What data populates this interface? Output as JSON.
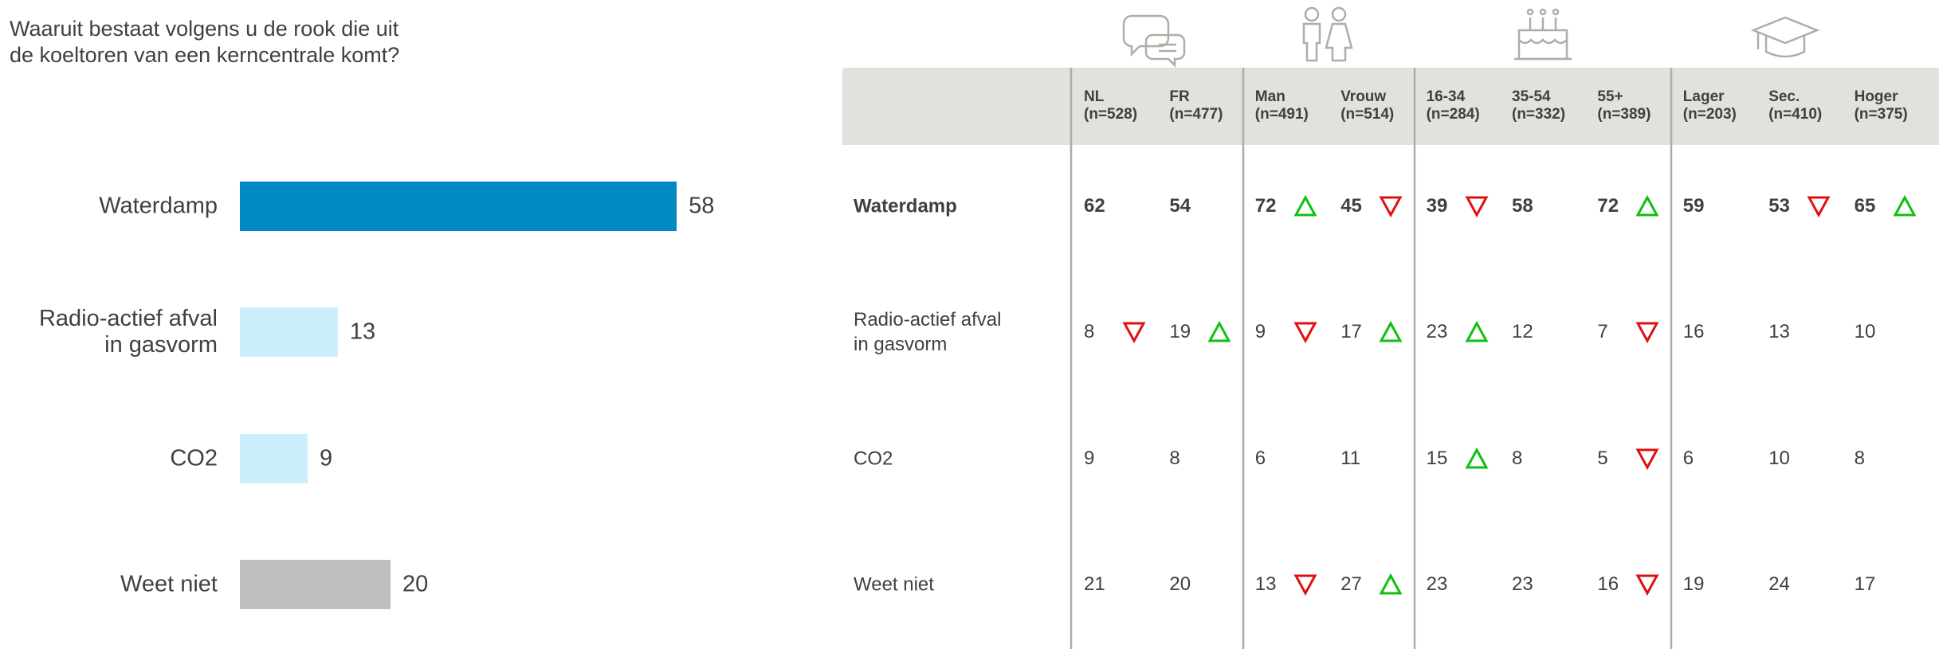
{
  "chart_data": {
    "type": "bar",
    "orientation": "horizontal",
    "title": "Waaruit bestaat volgens u de rook die uit\nde koeltoren van een kerncentrale komt?",
    "categories": [
      "Waterdamp",
      "Radio-actief afval\nin gasvorm",
      "CO2",
      "Weet niet"
    ],
    "values": [
      58,
      13,
      9,
      20
    ],
    "colors": [
      "#0089c4",
      "#cdeefc",
      "#cdeefc",
      "#bfbfbf"
    ]
  },
  "table": {
    "columns": [
      "NL\n(n=528)",
      "FR\n(n=477)",
      "Man\n(n=491)",
      "Vrouw\n(n=514)",
      "16-34\n(n=284)",
      "35-54\n(n=332)",
      "55+\n(n=389)",
      "Lager\n(n=203)",
      "Sec.\n(n=410)",
      "Hoger\n(n=375)"
    ],
    "rows": [
      {
        "label": "Waterdamp",
        "bold": true,
        "cells": [
          {
            "value": 62
          },
          {
            "value": 54
          },
          {
            "value": 72,
            "sig": "up"
          },
          {
            "value": 45,
            "sig": "down"
          },
          {
            "value": 39,
            "sig": "down"
          },
          {
            "value": 58
          },
          {
            "value": 72,
            "sig": "up"
          },
          {
            "value": 59
          },
          {
            "value": 53,
            "sig": "down"
          },
          {
            "value": 65,
            "sig": "up"
          }
        ]
      },
      {
        "label": "Radio-actief afval\nin gasvorm",
        "cells": [
          {
            "value": 8,
            "sig": "down"
          },
          {
            "value": 19,
            "sig": "up"
          },
          {
            "value": 9,
            "sig": "down"
          },
          {
            "value": 17,
            "sig": "up"
          },
          {
            "value": 23,
            "sig": "up"
          },
          {
            "value": 12
          },
          {
            "value": 7,
            "sig": "down"
          },
          {
            "value": 16
          },
          {
            "value": 13
          },
          {
            "value": 10
          }
        ]
      },
      {
        "label": "CO2",
        "cells": [
          {
            "value": 9
          },
          {
            "value": 8
          },
          {
            "value": 6
          },
          {
            "value": 11
          },
          {
            "value": 15,
            "sig": "up"
          },
          {
            "value": 8
          },
          {
            "value": 5,
            "sig": "down"
          },
          {
            "value": 6
          },
          {
            "value": 10
          },
          {
            "value": 8
          }
        ]
      },
      {
        "label": "Weet niet",
        "cells": [
          {
            "value": 21
          },
          {
            "value": 20
          },
          {
            "value": 13,
            "sig": "down"
          },
          {
            "value": 27,
            "sig": "up"
          },
          {
            "value": 23
          },
          {
            "value": 23
          },
          {
            "value": 16,
            "sig": "down"
          },
          {
            "value": 19
          },
          {
            "value": 24
          },
          {
            "value": 17
          }
        ]
      }
    ]
  }
}
